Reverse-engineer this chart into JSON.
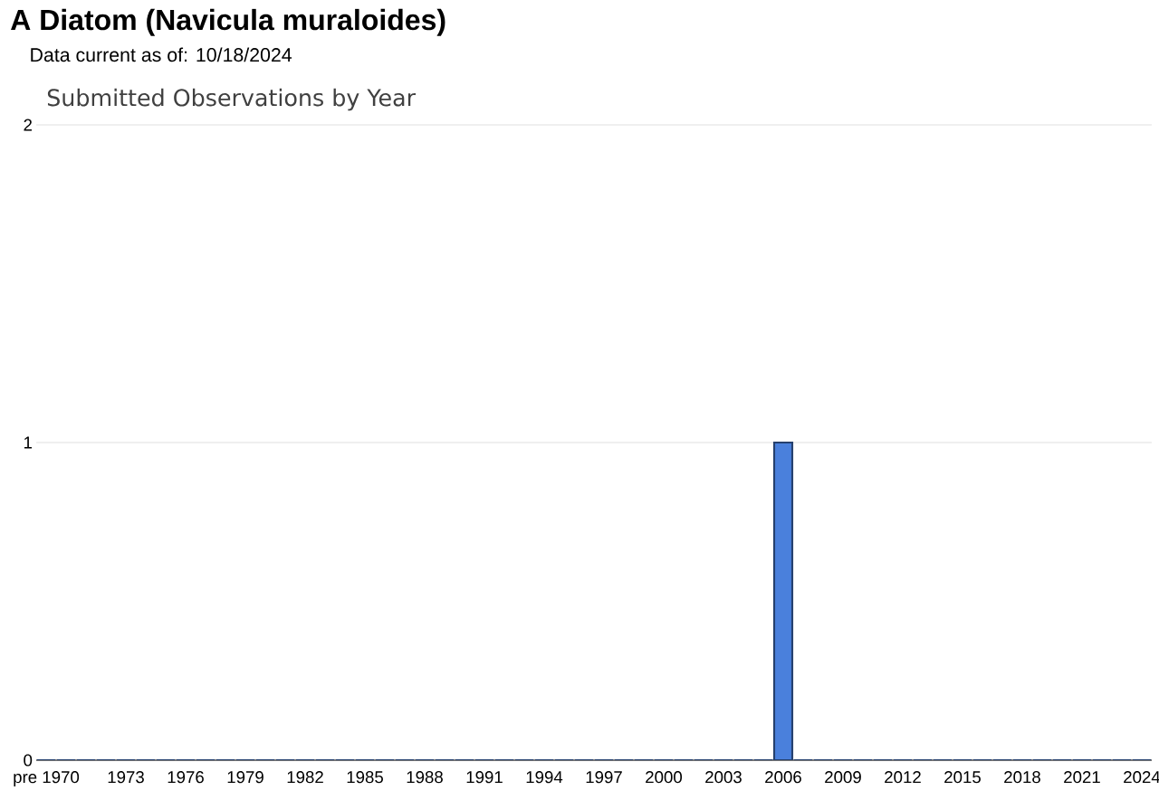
{
  "chart_data": {
    "type": "bar",
    "title": "Submitted Observations by Year",
    "annotations": [
      "A Diatom   (**Navicula muraloides**)",
      "Data current as of: 10/18/2024"
    ],
    "categories": [
      "pre 1970",
      null,
      null,
      null,
      "1973",
      null,
      null,
      "1976",
      null,
      null,
      "1979",
      null,
      null,
      "1982",
      null,
      null,
      "1985",
      null,
      null,
      "1988",
      null,
      null,
      "1991",
      null,
      null,
      "1994",
      null,
      null,
      "1997",
      null,
      null,
      "2000",
      null,
      null,
      "2003",
      null,
      null,
      "2006",
      null,
      null,
      "2009",
      null,
      null,
      "2012",
      null,
      null,
      "2015",
      null,
      null,
      "2018",
      null,
      null,
      "2021",
      null,
      null,
      "2024"
    ],
    "values": [
      0,
      0,
      0,
      0,
      0,
      0,
      0,
      0,
      0,
      0,
      0,
      0,
      0,
      0,
      0,
      0,
      0,
      0,
      0,
      0,
      0,
      0,
      0,
      0,
      0,
      0,
      0,
      0,
      0,
      0,
      0,
      0,
      0,
      0,
      0,
      0,
      0,
      1,
      0,
      0,
      0,
      0,
      0,
      0,
      0,
      0,
      0,
      0,
      0,
      0,
      0,
      0,
      0,
      0,
      0,
      0
    ],
    "color": "#4a80dc",
    "ylim": [
      0,
      2
    ],
    "yticks": [
      0,
      1,
      2
    ],
    "grid": "y"
  }
}
